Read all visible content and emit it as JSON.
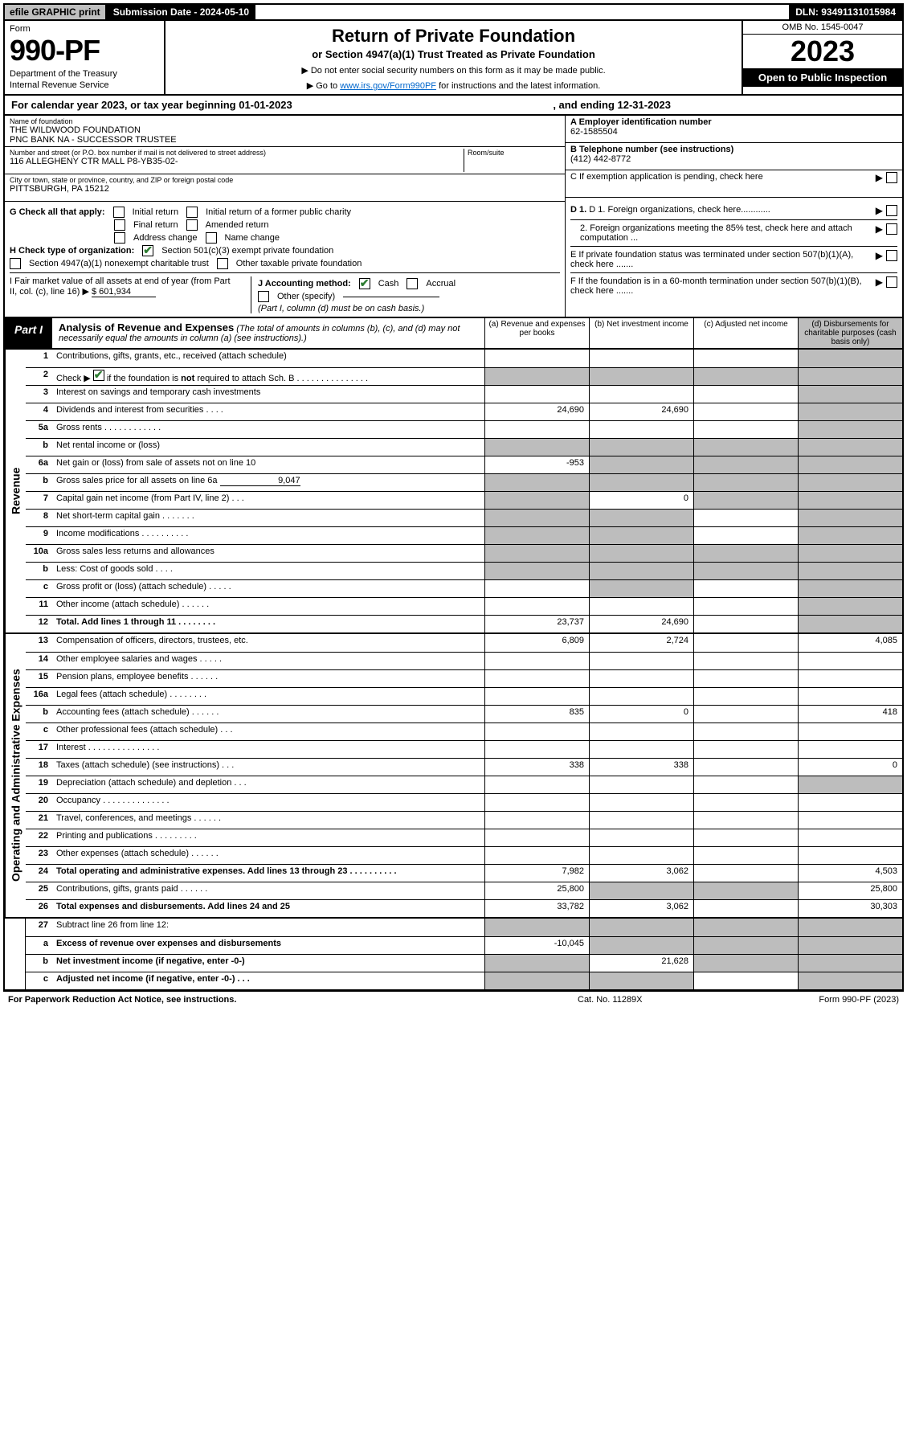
{
  "topbar": {
    "efile": "efile GRAPHIC print",
    "subdate_label": "Submission Date - 2024-05-10",
    "dln": "DLN: 93491131015984"
  },
  "header": {
    "form_label": "Form",
    "form_num": "990-PF",
    "dept": "Department of the Treasury",
    "irs": "Internal Revenue Service",
    "title": "Return of Private Foundation",
    "sub": "or Section 4947(a)(1) Trust Treated as Private Foundation",
    "note1": "▶ Do not enter social security numbers on this form as it may be made public.",
    "note2_pre": "▶ Go to ",
    "note2_link": "www.irs.gov/Form990PF",
    "note2_post": " for instructions and the latest information.",
    "omb": "OMB No. 1545-0047",
    "year": "2023",
    "open": "Open to Public Inspection"
  },
  "cal": {
    "pre": "For calendar year 2023, or tax year beginning 01-01-2023",
    "mid": ", and ending 12-31-2023"
  },
  "ident": {
    "name_lbl": "Name of foundation",
    "name1": "THE WILDWOOD FOUNDATION",
    "name2": "PNC BANK NA - SUCCESSOR TRUSTEE",
    "addr_lbl": "Number and street (or P.O. box number if mail is not delivered to street address)",
    "addr": "116 ALLEGHENY CTR MALL P8-YB35-02-",
    "room_lbl": "Room/suite",
    "city_lbl": "City or town, state or province, country, and ZIP or foreign postal code",
    "city": "PITTSBURGH, PA  15212",
    "ein_lbl": "A Employer identification number",
    "ein": "62-1585504",
    "tel_lbl": "B Telephone number (see instructions)",
    "tel": "(412) 442-8772",
    "c": "C If exemption application is pending, check here",
    "d1": "D 1. Foreign organizations, check here............",
    "d2": "2. Foreign organizations meeting the 85% test, check here and attach computation ...",
    "e": "E  If private foundation status was terminated under section 507(b)(1)(A), check here .......",
    "f": "F  If the foundation is in a 60-month termination under section 507(b)(1)(B), check here ......."
  },
  "opts": {
    "g_lbl": "G Check all that apply:",
    "g": [
      "Initial return",
      "Initial return of a former public charity",
      "Final return",
      "Amended return",
      "Address change",
      "Name change"
    ],
    "h_lbl": "H Check type of organization:",
    "h1": "Section 501(c)(3) exempt private foundation",
    "h2": "Section 4947(a)(1) nonexempt charitable trust",
    "h3": "Other taxable private foundation",
    "i_lbl": "I Fair market value of all assets at end of year (from Part II, col. (c), line 16)",
    "i_val": "$  601,934",
    "j_lbl": "J Accounting method:",
    "j_cash": "Cash",
    "j_accr": "Accrual",
    "j_oth": "Other (specify)",
    "j_note": "(Part I, column (d) must be on cash basis.)"
  },
  "part1": {
    "tag": "Part I",
    "title": "Analysis of Revenue and Expenses",
    "desc": " (The total of amounts in columns (b), (c), and (d) may not necessarily equal the amounts in column (a) (see instructions).)",
    "cols": {
      "a": "(a)   Revenue and expenses per books",
      "b": "(b)   Net investment income",
      "c": "(c)   Adjusted net income",
      "d": "(d)   Disbursements for charitable purposes (cash basis only)"
    }
  },
  "side": {
    "rev": "Revenue",
    "exp": "Operating and Administrative Expenses"
  },
  "rows": {
    "r1": {
      "n": "1",
      "d": "Contributions, gifts, grants, etc., received (attach schedule)"
    },
    "r2": {
      "n": "2",
      "d": "Check ▶     if the foundation is not required to attach Sch. B     .   .   .   .   .   .   .   .   .   .   .   .   .   .   .   ."
    },
    "r3": {
      "n": "3",
      "d": "Interest on savings and temporary cash investments"
    },
    "r4": {
      "n": "4",
      "d": "Dividends and interest from securities   .   .   .   .",
      "a": "24,690",
      "b": "24,690"
    },
    "r5a": {
      "n": "5a",
      "d": "Gross rents   .   .   .   .   .   .   .   .   .   .   .   ."
    },
    "r5b": {
      "n": "b",
      "d": "Net rental income or (loss)"
    },
    "r6a": {
      "n": "6a",
      "d": "Net gain or (loss) from sale of assets not on line 10",
      "a": "-953"
    },
    "r6b": {
      "n": "b",
      "d": "Gross sales price for all assets on line 6a",
      "inset": "9,047"
    },
    "r7": {
      "n": "7",
      "d": "Capital gain net income (from Part IV, line 2)   .   .   .",
      "b": "0"
    },
    "r8": {
      "n": "8",
      "d": "Net short-term capital gain   .   .   .   .   .   .   ."
    },
    "r9": {
      "n": "9",
      "d": "Income modifications   .   .   .   .   .   .   .   .   .   ."
    },
    "r10a": {
      "n": "10a",
      "d": "Gross sales less returns and allowances"
    },
    "r10b": {
      "n": "b",
      "d": "Less: Cost of goods sold   .   .   .   ."
    },
    "r10c": {
      "n": "c",
      "d": "Gross profit or (loss) (attach schedule)   .   .   .   .   ."
    },
    "r11": {
      "n": "11",
      "d": "Other income (attach schedule)   .   .   .   .   .   ."
    },
    "r12": {
      "n": "12",
      "d": "Total. Add lines 1 through 11   .   .   .   .   .   .   .   .",
      "a": "23,737",
      "b": "24,690"
    },
    "r13": {
      "n": "13",
      "d": "Compensation of officers, directors, trustees, etc.",
      "a": "6,809",
      "b": "2,724",
      "x": "4,085"
    },
    "r14": {
      "n": "14",
      "d": "Other employee salaries and wages   .   .   .   .   ."
    },
    "r15": {
      "n": "15",
      "d": "Pension plans, employee benefits   .   .   .   .   .   ."
    },
    "r16a": {
      "n": "16a",
      "d": "Legal fees (attach schedule)   .   .   .   .   .   .   .   ."
    },
    "r16b": {
      "n": "b",
      "d": "Accounting fees (attach schedule)   .   .   .   .   .   .",
      "a": "835",
      "b": "0",
      "x": "418"
    },
    "r16c": {
      "n": "c",
      "d": "Other professional fees (attach schedule)   .   .   ."
    },
    "r17": {
      "n": "17",
      "d": "Interest   .   .   .   .   .   .   .   .   .   .   .   .   .   .   ."
    },
    "r18": {
      "n": "18",
      "d": "Taxes (attach schedule) (see instructions)   .   .   .",
      "a": "338",
      "b": "338",
      "x": "0"
    },
    "r19": {
      "n": "19",
      "d": "Depreciation (attach schedule) and depletion   .   .   ."
    },
    "r20": {
      "n": "20",
      "d": "Occupancy   .   .   .   .   .   .   .   .   .   .   .   .   .   ."
    },
    "r21": {
      "n": "21",
      "d": "Travel, conferences, and meetings   .   .   .   .   .   ."
    },
    "r22": {
      "n": "22",
      "d": "Printing and publications   .   .   .   .   .   .   .   .   ."
    },
    "r23": {
      "n": "23",
      "d": "Other expenses (attach schedule)   .   .   .   .   .   ."
    },
    "r24": {
      "n": "24",
      "d": "Total operating and administrative expenses. Add lines 13 through 23   .   .   .   .   .   .   .   .   .   .",
      "a": "7,982",
      "b": "3,062",
      "x": "4,503"
    },
    "r25": {
      "n": "25",
      "d": "Contributions, gifts, grants paid   .   .   .   .   .   .",
      "a": "25,800",
      "x": "25,800"
    },
    "r26": {
      "n": "26",
      "d": "Total expenses and disbursements. Add lines 24 and 25",
      "a": "33,782",
      "b": "3,062",
      "x": "30,303"
    },
    "r27": {
      "n": "27",
      "d": "Subtract line 26 from line 12:"
    },
    "r27a": {
      "n": "a",
      "d": "Excess of revenue over expenses and disbursements",
      "a": "-10,045"
    },
    "r27b": {
      "n": "b",
      "d": "Net investment income (if negative, enter -0-)",
      "b": "21,628"
    },
    "r27c": {
      "n": "c",
      "d": "Adjusted net income (if negative, enter -0-)   .   .   ."
    }
  },
  "footer": {
    "l": "For Paperwork Reduction Act Notice, see instructions.",
    "c": "Cat. No. 11289X",
    "r": "Form 990-PF (2023)"
  }
}
